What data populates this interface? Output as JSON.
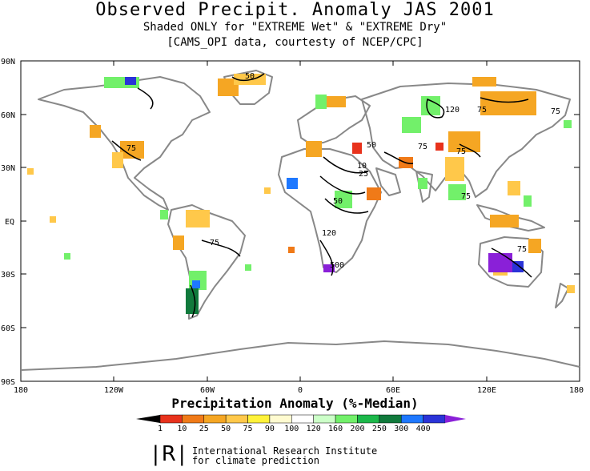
{
  "header": {
    "title": "Observed Precipit. Anomaly JAS 2001",
    "subtitle": "Shaded ONLY for \"EXTREME Wet\" & \"EXTREME Dry\"",
    "source": "[CAMS_OPI data, courtesty of NCEP/CPC]"
  },
  "map": {
    "lat_labels": [
      "90N",
      "60N",
      "30N",
      "EQ",
      "30S",
      "60S",
      "90S"
    ],
    "lon_labels": [
      "180",
      "120W",
      "60W",
      "0",
      "60E",
      "120E",
      "180"
    ],
    "contour_labels": [
      "50",
      "120",
      "75",
      "75",
      "75",
      "50",
      "10",
      "25",
      "75",
      "75",
      "75",
      "50",
      "120",
      "500",
      "75",
      "75"
    ],
    "colors": {
      "land_outline": "#888888",
      "contour": "#000000"
    }
  },
  "legend": {
    "title": "Precipitation Anomaly (%-Median)",
    "ticks": [
      "1",
      "10",
      "25",
      "50",
      "75",
      "90",
      "100",
      "120",
      "160",
      "200",
      "250",
      "300",
      "400"
    ],
    "colors": [
      "#000000",
      "#e8321c",
      "#f07a18",
      "#f5a623",
      "#ffc84a",
      "#fff23a",
      "#fffbd0",
      "#ffffff",
      "#ccffc8",
      "#72f06a",
      "#1cb84a",
      "#117a3c",
      "#1e78ff",
      "#2a33d8",
      "#8a20d8"
    ]
  },
  "footer": {
    "logo": "|R|",
    "org_line1": "International Research Institute",
    "org_line2": "for climate prediction"
  }
}
